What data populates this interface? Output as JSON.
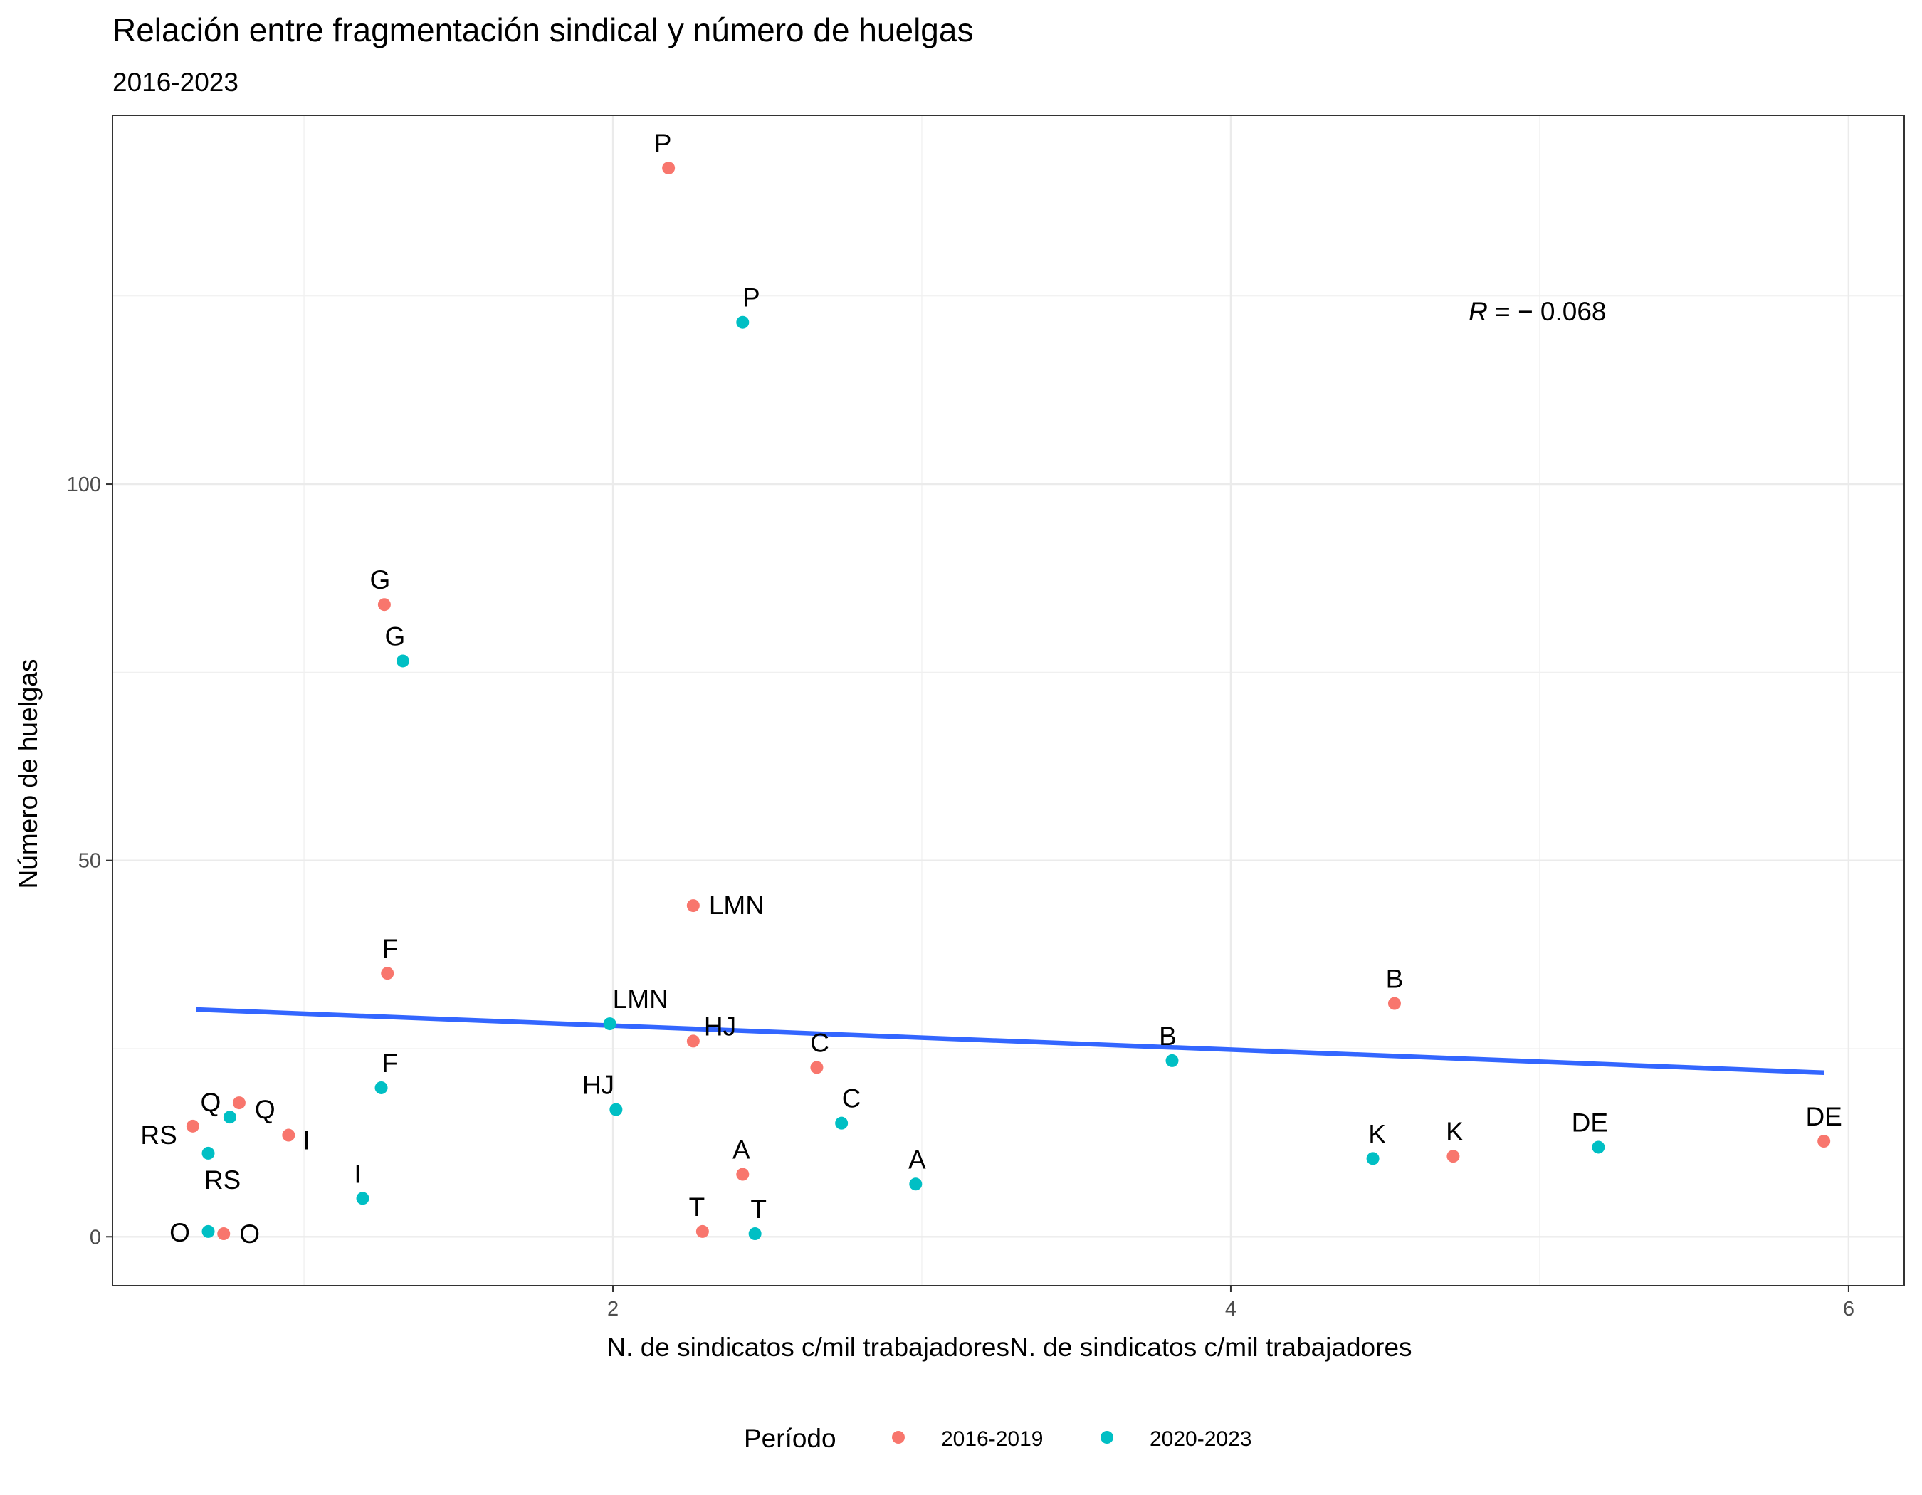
{
  "chart_data": {
    "type": "scatter",
    "title": "Relación entre fragmentación sindical y número de huelgas",
    "subtitle": "2016-2023",
    "xlabel": "N. de sindicatos c/mil trabajadoresN. de sindicatos c/mil trabajadores",
    "ylabel": "Número de huelgas",
    "xlim": [
      0.38,
      6.18
    ],
    "ylim": [
      -6.5,
      149
    ],
    "x_ticks": [
      2,
      4,
      6
    ],
    "y_ticks": [
      0,
      50,
      100
    ],
    "x_tick_labels": [
      "2",
      "4",
      "6"
    ],
    "y_tick_labels": [
      "0",
      "50",
      "100"
    ],
    "grid": true,
    "legend": {
      "title": "Período",
      "position": "bottom",
      "entries": [
        {
          "label": "2016-2019",
          "color": "#F8766D"
        },
        {
          "label": "2020-2023",
          "color": "#00BFC4"
        }
      ]
    },
    "series": [
      {
        "name": "2016-2019",
        "color": "#F8766D",
        "points": [
          {
            "label": "P",
            "x": 2.18,
            "y": 142
          },
          {
            "label": "G",
            "x": 1.26,
            "y": 84
          },
          {
            "label": "LMN",
            "x": 2.26,
            "y": 44
          },
          {
            "label": "F",
            "x": 1.27,
            "y": 35
          },
          {
            "label": "HJ",
            "x": 2.26,
            "y": 26
          },
          {
            "label": "C",
            "x": 2.66,
            "y": 22.5
          },
          {
            "label": "B",
            "x": 4.53,
            "y": 31
          },
          {
            "label": "Q",
            "x": 0.79,
            "y": 17.8
          },
          {
            "label": "RS",
            "x": 0.64,
            "y": 14.7
          },
          {
            "label": "I",
            "x": 0.95,
            "y": 13.5
          },
          {
            "label": "K",
            "x": 4.72,
            "y": 10.7
          },
          {
            "label": "DE",
            "x": 5.92,
            "y": 12.7
          },
          {
            "label": "A",
            "x": 2.42,
            "y": 8.3
          },
          {
            "label": "T",
            "x": 2.29,
            "y": 0.7
          },
          {
            "label": "O",
            "x": 0.74,
            "y": 0.4
          }
        ]
      },
      {
        "name": "2020-2023",
        "color": "#00BFC4",
        "points": [
          {
            "label": "P",
            "x": 2.42,
            "y": 121.5
          },
          {
            "label": "G",
            "x": 1.32,
            "y": 76.5
          },
          {
            "label": "LMN",
            "x": 1.99,
            "y": 28.3
          },
          {
            "label": "F",
            "x": 1.25,
            "y": 19.8
          },
          {
            "label": "HJ",
            "x": 2.01,
            "y": 16.9
          },
          {
            "label": "C",
            "x": 2.74,
            "y": 15.1
          },
          {
            "label": "B",
            "x": 3.81,
            "y": 23.4
          },
          {
            "label": "Q",
            "x": 0.76,
            "y": 15.9
          },
          {
            "label": "RS",
            "x": 0.69,
            "y": 11.1
          },
          {
            "label": "I",
            "x": 1.19,
            "y": 5.1
          },
          {
            "label": "K",
            "x": 4.46,
            "y": 10.4
          },
          {
            "label": "DE",
            "x": 5.19,
            "y": 11.9
          },
          {
            "label": "A",
            "x": 2.98,
            "y": 7
          },
          {
            "label": "T",
            "x": 2.46,
            "y": 0.4
          },
          {
            "label": "O",
            "x": 0.69,
            "y": 0.7
          }
        ]
      }
    ],
    "trend_line": {
      "x": [
        0.65,
        5.92
      ],
      "y": [
        30.2,
        21.8
      ],
      "color": "#3366FF"
    },
    "annotation": {
      "text_italic": "R",
      "text": " = − 0.068",
      "x": 4.77,
      "y": 123
    }
  }
}
